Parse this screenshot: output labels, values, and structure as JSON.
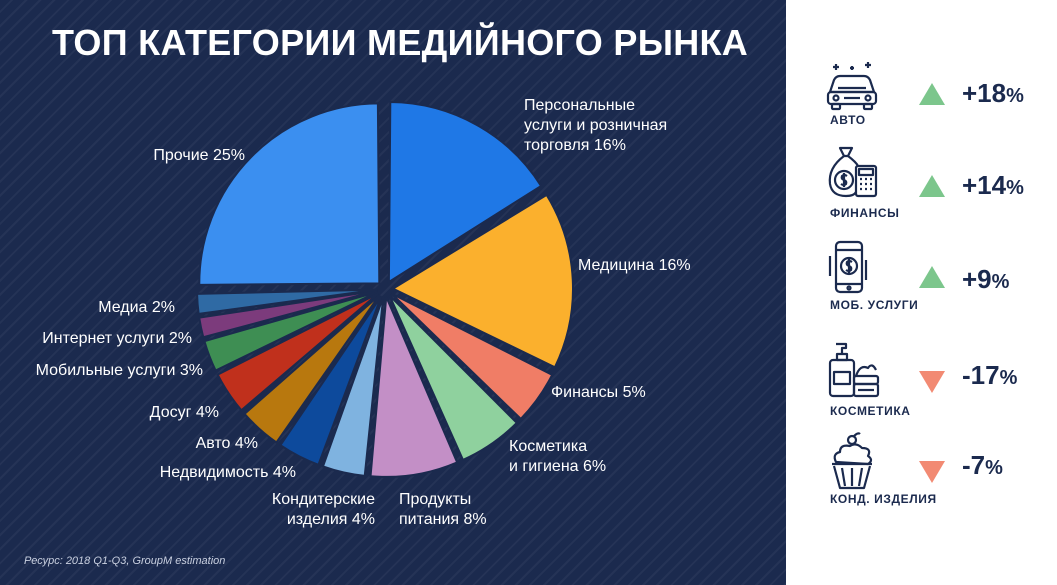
{
  "title": "ТОП КАТЕГОРИИ МЕДИЙНОГО РЫНКА",
  "source": "Ресурс: 2018 Q1-Q3, GroupM estimation",
  "chart_data": {
    "type": "pie",
    "slices": [
      {
        "label": [
          "Персональные",
          "услуги и розничная",
          "торговля 16%"
        ],
        "value": 16,
        "color": "#1f78e6"
      },
      {
        "label": [
          "Медицина 16%"
        ],
        "value": 16,
        "color": "#fbb02d"
      },
      {
        "label": [
          "Финансы 5%"
        ],
        "value": 5,
        "color": "#f07d66"
      },
      {
        "label": [
          "Косметика",
          "и гигиена 6%"
        ],
        "value": 6,
        "color": "#8fd19e"
      },
      {
        "label": [
          "Продукты",
          "питания 8%"
        ],
        "value": 8,
        "color": "#c38fc6"
      },
      {
        "label": [
          "Кондитерские",
          "изделия 4%"
        ],
        "value": 4,
        "color": "#7fb3e0"
      },
      {
        "label": [
          "Недвидимость 4%"
        ],
        "value": 4,
        "color": "#0d4a9c"
      },
      {
        "label": [
          "Авто 4%"
        ],
        "value": 4,
        "color": "#b8780e"
      },
      {
        "label": [
          "Досуг 4%"
        ],
        "value": 4,
        "color": "#c0301c"
      },
      {
        "label": [
          "Мобильные услуги 3%"
        ],
        "value": 3,
        "color": "#3e8e53"
      },
      {
        "label": [
          "Интернет услуги 2%"
        ],
        "value": 2,
        "color": "#7c3b7c"
      },
      {
        "label": [
          "Медиа 2%"
        ],
        "value": 2,
        "color": "#2f6aa4"
      },
      {
        "label": [
          "Прочие 25%"
        ],
        "value": 25,
        "color": "#3b8ff0"
      }
    ]
  },
  "kpis": [
    {
      "label": "АВТО",
      "value": "+18",
      "unit": "%",
      "trend": "up",
      "icon": "car-icon"
    },
    {
      "label": "ФИНАНСЫ",
      "value": "+14",
      "unit": "%",
      "trend": "up",
      "icon": "money-bag-calculator-icon"
    },
    {
      "label": "МОБ. УСЛУГИ",
      "value": "+9",
      "unit": "%",
      "trend": "up",
      "icon": "smartphone-icon"
    },
    {
      "label": "КОСМЕТИКА",
      "value": "-17",
      "unit": "%",
      "trend": "down",
      "icon": "cosmetics-icon"
    },
    {
      "label": "КОНД. ИЗДЕЛИЯ",
      "value": "-7",
      "unit": "%",
      "trend": "down",
      "icon": "cupcake-icon"
    }
  ],
  "colors": {
    "background": "#1b2a4e",
    "up": "#7cc68c",
    "down": "#f28a73",
    "kpi_text": "#1b2a4e"
  }
}
